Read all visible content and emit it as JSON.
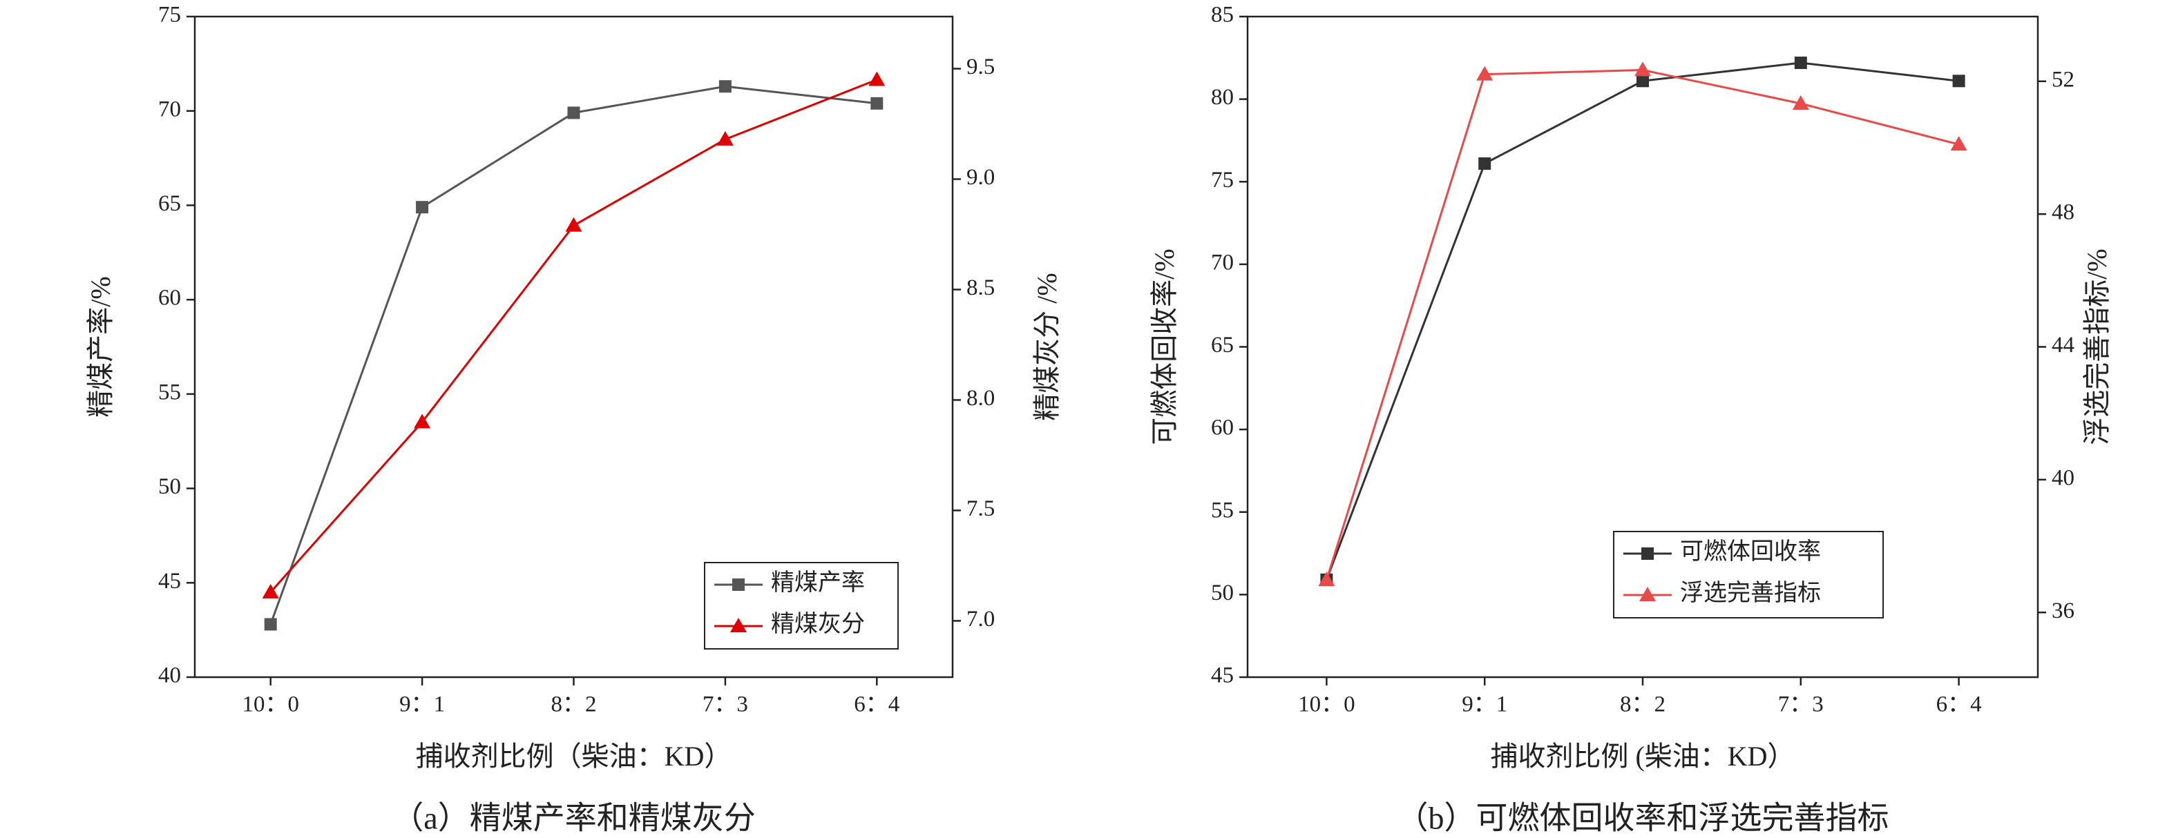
{
  "chart_data": [
    {
      "type": "line",
      "caption": "（a）精煤产率和精煤灰分",
      "x_label": "捕收剂比例（柴油：KD）",
      "y_label": "精煤产率/%",
      "y2_label": "精煤灰分 /%",
      "categories": [
        "10：0",
        "9：1",
        "8：2",
        "7：3",
        "6：4"
      ],
      "ylim": [
        40,
        75
      ],
      "yticks": [
        40,
        45,
        50,
        55,
        60,
        65,
        70,
        75
      ],
      "y2lim": [
        6.745,
        9.736
      ],
      "y2ticks": [
        {
          "value": 7,
          "label": "7.0"
        },
        7.5,
        {
          "value": 8,
          "label": "8.0"
        },
        8.5,
        {
          "value": 9,
          "label": "9.0"
        },
        9.5
      ],
      "legend": "lower right",
      "series": [
        {
          "name": "精煤产率",
          "color": "#555555",
          "marker": "square",
          "values": [
            42.8,
            64.9,
            69.9,
            71.3,
            70.4
          ]
        },
        {
          "name": "精煤灰分",
          "color": "#e00000",
          "marker": "triangle",
          "axis": "y2",
          "values": [
            7.13,
            7.9,
            8.79,
            9.18,
            9.45
          ]
        }
      ]
    },
    {
      "type": "line",
      "caption": "（b）可燃体回收率和浮选完善指标",
      "x_label": "捕收剂比例 (柴油：KD）",
      "y_label": "可燃体回收率/%",
      "y2_label": "浮选完善指标/%",
      "categories": [
        "10：0",
        "9：1",
        "8：2",
        "7：3",
        "6：4"
      ],
      "ylim": [
        45,
        85
      ],
      "yticks": [
        45,
        50,
        55,
        60,
        65,
        70,
        75,
        80,
        85
      ],
      "y2lim": [
        34.05,
        53.95
      ],
      "y2ticks": [
        36,
        40,
        44,
        48,
        52
      ],
      "legend": "lower center",
      "series": [
        {
          "name": "可燃体回收率",
          "color": "#333333",
          "marker": "square",
          "values": [
            50.9,
            76.1,
            81.1,
            82.2,
            81.1
          ]
        },
        {
          "name": "浮选完善指标",
          "color": "#e84a4a",
          "marker": "triangle",
          "axis": "y2",
          "values": [
            36.98,
            52.21,
            52.34,
            51.33,
            50.1
          ]
        }
      ]
    }
  ]
}
